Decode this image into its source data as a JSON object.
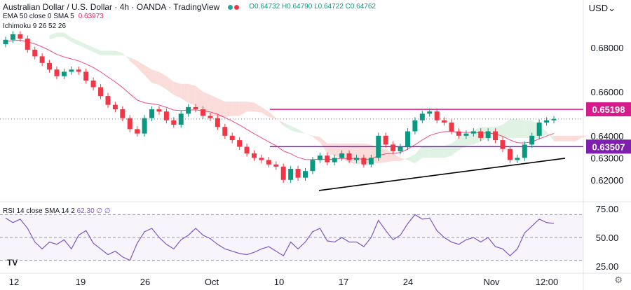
{
  "header": {
    "title": "Australian Dollar / U.S. Dollar · 4h · OANDA · TradingView",
    "ohlc": "O0.64732 H0.64790 L0.64722 C0.64762",
    "ema_label": "EMA 50 close 0 SMA 5",
    "ema_value": "0.63973",
    "ichimoku_label": "Ichimoku 9 26 52 26"
  },
  "currency": "USD",
  "rsi_label": "RSI 14 close SMA 14 2",
  "rsi_value": "62.30 ∅ ∅",
  "logo": "TV",
  "icons": {
    "settings": "gear-icon",
    "logo": "tradingview-logo-icon"
  },
  "colors": {
    "up": "#089981",
    "down": "#f23645",
    "ema": "#e91e63",
    "resistance": "#d81b8c",
    "support": "#7e1fae",
    "rsi": "#7e57c2",
    "cloud_red": "#f8d2cd",
    "cloud_green": "#d4eed9"
  },
  "chart_data": {
    "type": "candlestick",
    "title": "Australian Dollar / U.S. Dollar · 4h · OANDA",
    "y_axis": {
      "ticks": [
        "0.68000",
        "0.66000",
        "0.64000",
        "0.63000",
        "0.62000"
      ],
      "ylim": [
        0.612,
        0.692
      ]
    },
    "x_axis": {
      "ticks": [
        "12",
        "19",
        "26",
        "Oct",
        "10",
        "17",
        "24",
        "Nov",
        "12:00"
      ]
    },
    "horizontal_levels": [
      {
        "label": "0.65198",
        "value": 0.65198,
        "color": "#d81b8c"
      },
      {
        "label": "0.63507",
        "value": 0.63507,
        "color": "#7e1fae"
      }
    ],
    "trendline": {
      "from": [
        "Oct 13",
        0.6152
      ],
      "to": [
        "Nov 12",
        0.6298
      ]
    },
    "close_series": [
      0.6835,
      0.686,
      0.684,
      0.679,
      0.676,
      0.673,
      0.67,
      0.667,
      0.669,
      0.67,
      0.669,
      0.665,
      0.662,
      0.658,
      0.654,
      0.652,
      0.648,
      0.643,
      0.641,
      0.648,
      0.652,
      0.651,
      0.647,
      0.645,
      0.65,
      0.653,
      0.652,
      0.649,
      0.648,
      0.644,
      0.64,
      0.638,
      0.635,
      0.632,
      0.63,
      0.629,
      0.627,
      0.626,
      0.62,
      0.625,
      0.621,
      0.624,
      0.629,
      0.631,
      0.628,
      0.63,
      0.632,
      0.629,
      0.63,
      0.627,
      0.63,
      0.64,
      0.636,
      0.633,
      0.635,
      0.642,
      0.647,
      0.65,
      0.651,
      0.647,
      0.646,
      0.642,
      0.64,
      0.641,
      0.642,
      0.639,
      0.642,
      0.638,
      0.634,
      0.629,
      0.63,
      0.636,
      0.64,
      0.646,
      0.647,
      0.6476
    ],
    "rsi_panel": {
      "label": "RSI 14 close SMA 14 2",
      "last_value": 62.3,
      "y_ticks": [
        "75.00",
        "50.00",
        "25.00"
      ],
      "ylim": [
        20,
        80
      ],
      "values": [
        67,
        63,
        66,
        58,
        46,
        40,
        46,
        44,
        48,
        40,
        52,
        56,
        45,
        40,
        35,
        38,
        33,
        30,
        45,
        55,
        58,
        50,
        44,
        40,
        48,
        52,
        58,
        52,
        49,
        44,
        40,
        38,
        36,
        35,
        37,
        40,
        42,
        38,
        34,
        46,
        40,
        46,
        55,
        58,
        47,
        46,
        50,
        46,
        46,
        42,
        50,
        65,
        56,
        48,
        52,
        62,
        70,
        66,
        67,
        56,
        50,
        46,
        44,
        48,
        50,
        46,
        50,
        42,
        40,
        34,
        40,
        54,
        60,
        66,
        63,
        62.3
      ]
    }
  }
}
